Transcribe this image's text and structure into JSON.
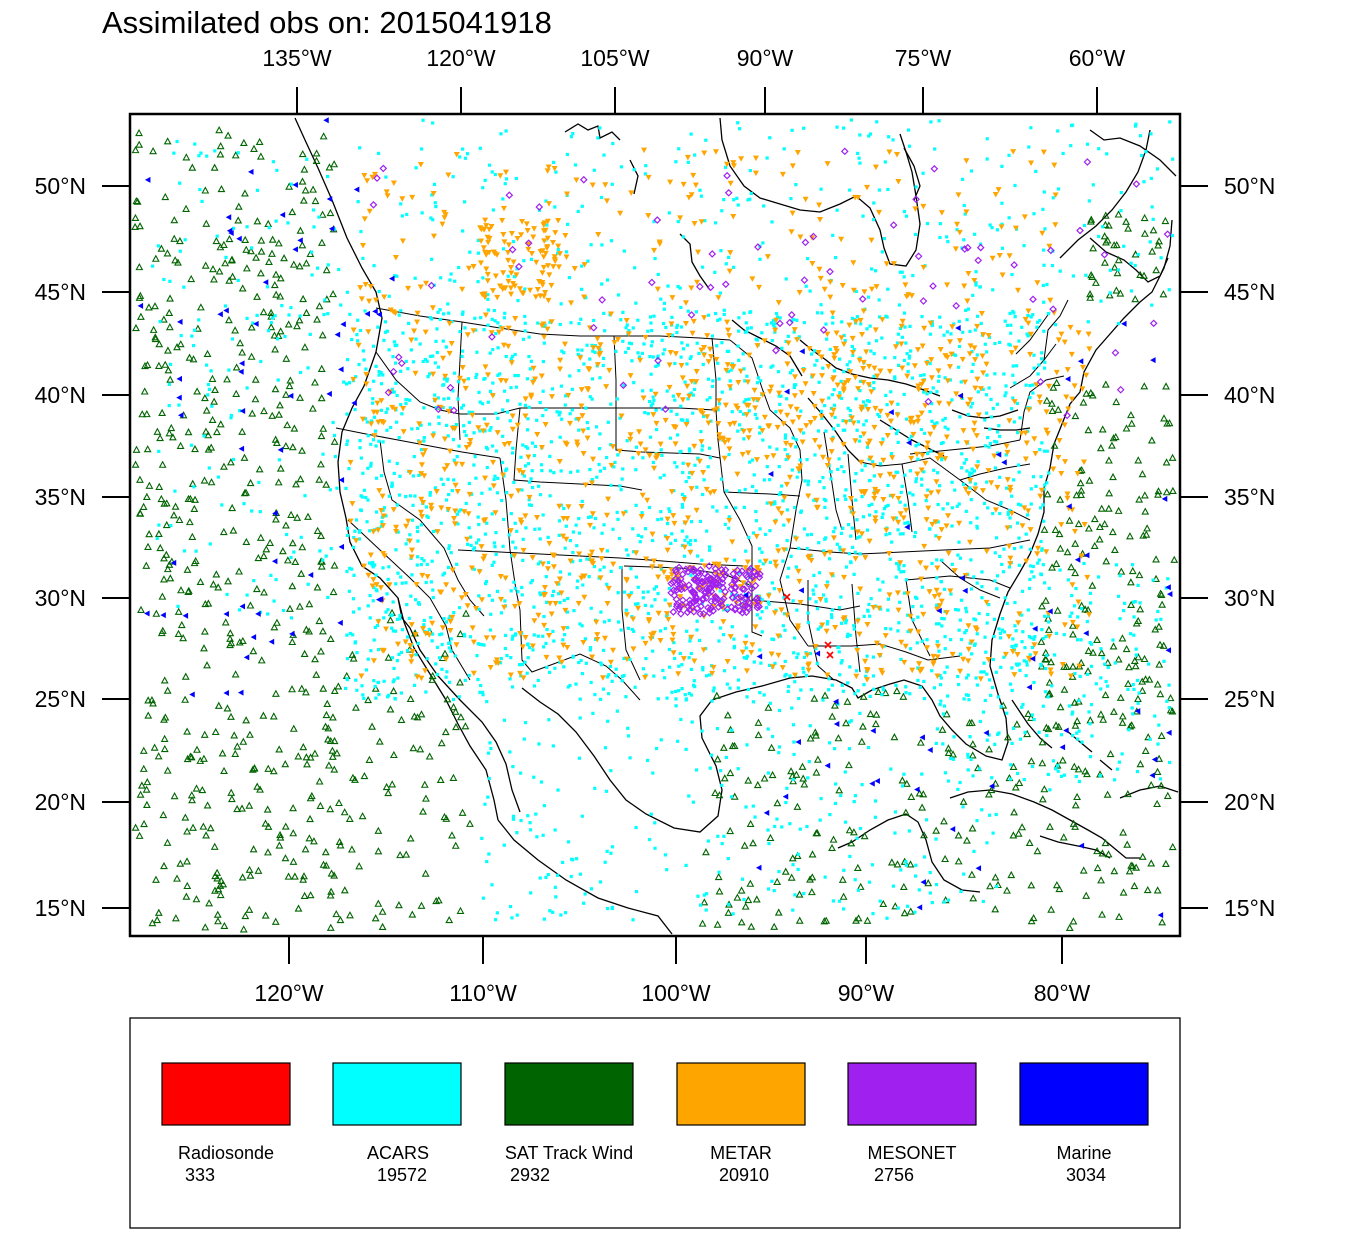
{
  "title": "Assimilated obs on: 2015041918",
  "top_lon_labels": [
    "135°W",
    "120°W",
    "105°W",
    "90°W",
    "75°W",
    "60°W"
  ],
  "bottom_lon_labels": [
    "120°W",
    "110°W",
    "100°W",
    "90°W",
    "80°W"
  ],
  "lat_labels": [
    "50°N",
    "45°N",
    "40°N",
    "35°N",
    "30°N",
    "25°N",
    "20°N",
    "15°N"
  ],
  "legend": [
    {
      "label": "Radiosonde",
      "count": "333",
      "color": "#ff0000",
      "symbol": "x"
    },
    {
      "label": "ACARS",
      "count": "19572",
      "color": "#00ffff",
      "symbol": "square"
    },
    {
      "label": "SAT Track Wind",
      "count": "2932",
      "color": "#006400",
      "symbol": "triangle"
    },
    {
      "label": "METAR",
      "count": "20910",
      "color": "#ffa500",
      "symbol": "inverted-triangle"
    },
    {
      "label": "MESONET",
      "count": "2756",
      "color": "#a020f0",
      "symbol": "diamond"
    },
    {
      "label": "Marine",
      "count": "3034",
      "color": "#0000ff",
      "symbol": "left-triangle"
    }
  ]
}
